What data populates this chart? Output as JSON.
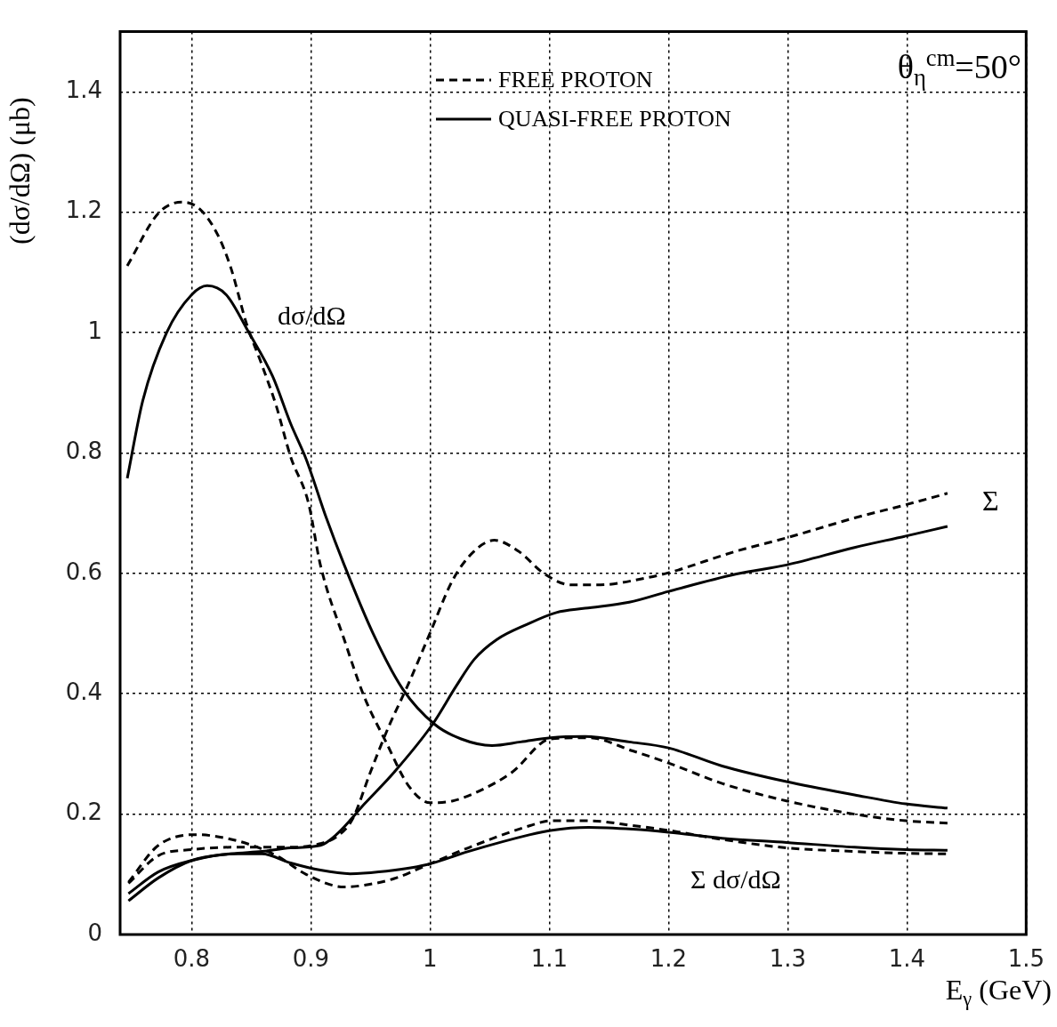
{
  "chart_data": {
    "type": "line",
    "xlabel": "E$_{γ}$ (GeV)",
    "ylabel": "(dσ/dΩ) (μb)",
    "xlim": [
      0.74,
      1.5
    ],
    "xticks": [
      0.8,
      0.9,
      1,
      1.1,
      1.2,
      1.3,
      1.4,
      1.5
    ],
    "ylim": [
      0,
      1.5
    ],
    "yticks": [
      0,
      0.2,
      0.4,
      0.6,
      0.8,
      1,
      1.2,
      1.4
    ],
    "grid": true,
    "legend": "top",
    "marker": "none",
    "annotations": [
      "θ$_{η}$$^{cm}$=50°",
      "dσ/dΩ",
      "Σ",
      "Σ dσ/dΩ"
    ],
    "series": [
      {
        "name": "FREE PROTON",
        "color": "#000000",
        "line_style": "dashed",
        "x": [
          0.746,
          0.772,
          0.792,
          0.807,
          0.822,
          0.833,
          0.846,
          0.859,
          0.871,
          0.883,
          0.898,
          0.908,
          0.928,
          0.945,
          0.963,
          0.982,
          1.0,
          1.019,
          1.044,
          1.069,
          1.101,
          1.133,
          1.17,
          1.2,
          1.245,
          1.299,
          1.356,
          1.399,
          1.434
        ],
        "values": [
          1.111,
          1.198,
          1.217,
          1.205,
          1.162,
          1.107,
          1.015,
          0.946,
          0.878,
          0.794,
          0.717,
          0.614,
          0.49,
          0.394,
          0.32,
          0.247,
          0.219,
          0.222,
          0.241,
          0.27,
          0.325,
          0.327,
          0.305,
          0.285,
          0.251,
          0.222,
          0.2,
          0.189,
          0.185
        ]
      },
      {
        "name": "QUASI-FREE PROTON",
        "color": "#000000",
        "line_style": "solid",
        "x": [
          0.746,
          0.759,
          0.779,
          0.8,
          0.813,
          0.829,
          0.848,
          0.868,
          0.883,
          0.896,
          0.913,
          0.928,
          0.952,
          0.977,
          1.004,
          1.026,
          1.052,
          1.076,
          1.101,
          1.13,
          1.167,
          1.2,
          1.245,
          1.299,
          1.356,
          1.399,
          1.434
        ],
        "values": [
          0.758,
          0.887,
          1.0,
          1.063,
          1.078,
          1.063,
          1.0,
          0.927,
          0.849,
          0.79,
          0.692,
          0.614,
          0.501,
          0.408,
          0.349,
          0.325,
          0.314,
          0.32,
          0.327,
          0.329,
          0.32,
          0.31,
          0.28,
          0.254,
          0.232,
          0.217,
          0.21
        ]
      },
      {
        "color": "#000000",
        "line_style": "dashed",
        "x": [
          0.747,
          0.772,
          0.8,
          0.833,
          0.883,
          0.908,
          0.922,
          0.935,
          0.95,
          0.965,
          0.982,
          1.0,
          1.019,
          1.037,
          1.054,
          1.074,
          1.096,
          1.118,
          1.143,
          1.18,
          1.2,
          1.257,
          1.299,
          1.356,
          1.399,
          1.434
        ],
        "values": [
          0.085,
          0.131,
          0.141,
          0.145,
          0.145,
          0.151,
          0.163,
          0.192,
          0.27,
          0.344,
          0.417,
          0.501,
          0.589,
          0.637,
          0.655,
          0.637,
          0.599,
          0.581,
          0.581,
          0.592,
          0.601,
          0.637,
          0.659,
          0.692,
          0.714,
          0.733
        ]
      },
      {
        "color": "#000000",
        "line_style": "solid",
        "x": [
          0.747,
          0.772,
          0.8,
          0.833,
          0.859,
          0.883,
          0.908,
          0.922,
          0.945,
          0.97,
          1.002,
          1.022,
          1.037,
          1.056,
          1.081,
          1.106,
          1.13,
          1.167,
          1.2,
          1.257,
          1.299,
          1.356,
          1.399,
          1.434
        ],
        "values": [
          0.056,
          0.094,
          0.123,
          0.134,
          0.138,
          0.144,
          0.148,
          0.167,
          0.217,
          0.27,
          0.349,
          0.413,
          0.457,
          0.49,
          0.515,
          0.535,
          0.542,
          0.552,
          0.57,
          0.599,
          0.614,
          0.643,
          0.662,
          0.678
        ]
      },
      {
        "color": "#000000",
        "line_style": "dashed",
        "x": [
          0.747,
          0.772,
          0.804,
          0.829,
          0.851,
          0.873,
          0.896,
          0.928,
          0.945,
          0.97,
          0.997,
          1.032,
          1.084,
          1.101,
          1.133,
          1.17,
          1.2,
          1.245,
          1.299,
          1.356,
          1.399,
          1.434
        ],
        "values": [
          0.087,
          0.148,
          0.166,
          0.16,
          0.148,
          0.129,
          0.1,
          0.079,
          0.082,
          0.093,
          0.115,
          0.144,
          0.181,
          0.189,
          0.189,
          0.181,
          0.173,
          0.158,
          0.144,
          0.138,
          0.135,
          0.134
        ]
      },
      {
        "color": "#000000",
        "line_style": "solid",
        "x": [
          0.747,
          0.772,
          0.8,
          0.833,
          0.859,
          0.883,
          0.908,
          0.933,
          0.957,
          0.997,
          1.032,
          1.084,
          1.101,
          1.133,
          1.17,
          1.2,
          1.245,
          1.299,
          1.356,
          1.399,
          1.434
        ],
        "values": [
          0.068,
          0.104,
          0.123,
          0.134,
          0.134,
          0.119,
          0.107,
          0.101,
          0.104,
          0.116,
          0.138,
          0.166,
          0.173,
          0.178,
          0.175,
          0.17,
          0.16,
          0.153,
          0.145,
          0.141,
          0.14
        ]
      }
    ]
  }
}
